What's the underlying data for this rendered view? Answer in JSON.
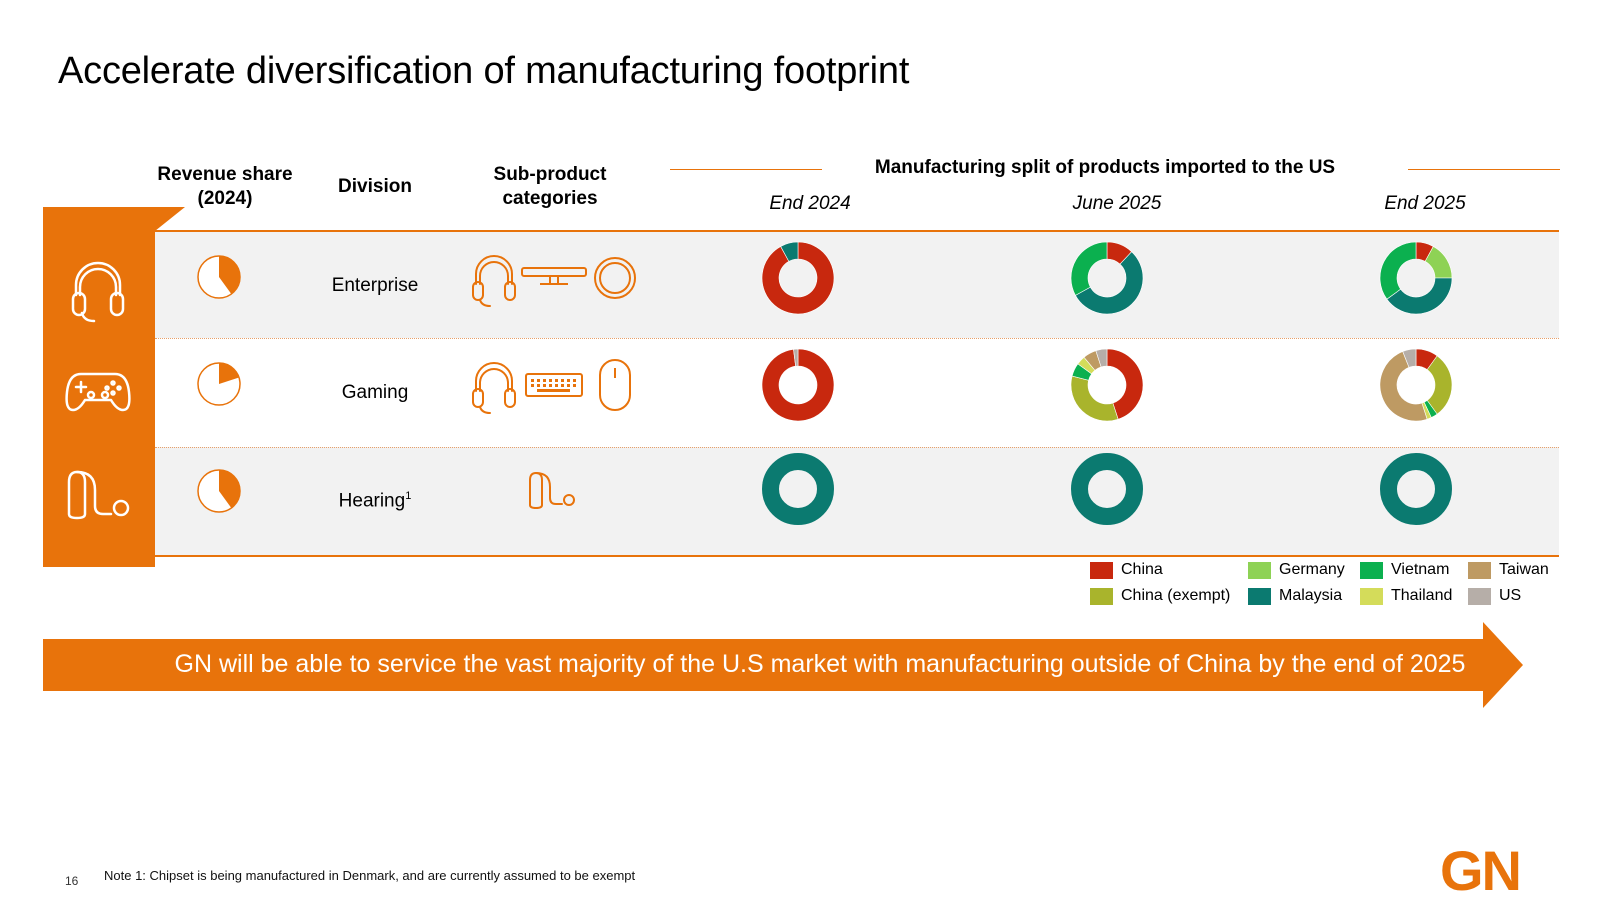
{
  "title": "Accelerate diversification of manufacturing footprint",
  "headers": {
    "revenue_share": "Revenue share (2024)",
    "division": "Division",
    "sub_product": "Sub-product categories",
    "manufacturing": "Manufacturing split of products imported to the US"
  },
  "periods": [
    "End 2024",
    "June 2025",
    "End 2025"
  ],
  "colors": {
    "brand": "#E8730B",
    "China": "#C8280E",
    "China (exempt)": "#A9B42C",
    "Germany": "#8ED255",
    "Malaysia": "#0B7A70",
    "Vietnam": "#0BB04F",
    "Thailand": "#D4DC5A",
    "Taiwan": "#BE9A63",
    "US": "#B6AEA8"
  },
  "divisions": [
    {
      "name": "Enterprise",
      "footnote": "",
      "revenue_share": 0.4,
      "division_icon": "headset-icon",
      "sub_icons": [
        "headset-icon",
        "video-bar-icon",
        "speakerphone-icon"
      ]
    },
    {
      "name": "Gaming",
      "footnote": "",
      "revenue_share": 0.2,
      "division_icon": "gamepad-icon",
      "sub_icons": [
        "headset-icon",
        "keyboard-icon",
        "mouse-icon"
      ]
    },
    {
      "name": "Hearing",
      "footnote": "1",
      "revenue_share": 0.4,
      "division_icon": "hearing-aid-icon",
      "sub_icons": [
        "hearing-aid-icon"
      ]
    }
  ],
  "chart_data": [
    {
      "type": "pie",
      "title": "Enterprise End 2024",
      "slices": [
        {
          "label": "China",
          "value": 92
        },
        {
          "label": "Malaysia",
          "value": 8
        }
      ]
    },
    {
      "type": "pie",
      "title": "Enterprise June 2025",
      "slices": [
        {
          "label": "China",
          "value": 12
        },
        {
          "label": "Malaysia",
          "value": 55
        },
        {
          "label": "Vietnam",
          "value": 33
        }
      ]
    },
    {
      "type": "pie",
      "title": "Enterprise End 2025",
      "slices": [
        {
          "label": "China",
          "value": 8
        },
        {
          "label": "Germany",
          "value": 17
        },
        {
          "label": "Malaysia",
          "value": 40
        },
        {
          "label": "Vietnam",
          "value": 35
        }
      ]
    },
    {
      "type": "pie",
      "title": "Gaming End 2024",
      "slices": [
        {
          "label": "China",
          "value": 98
        },
        {
          "label": "US",
          "value": 2
        }
      ]
    },
    {
      "type": "pie",
      "title": "Gaming June 2025",
      "slices": [
        {
          "label": "China",
          "value": 45
        },
        {
          "label": "China (exempt)",
          "value": 34
        },
        {
          "label": "Vietnam",
          "value": 6
        },
        {
          "label": "Thailand",
          "value": 4
        },
        {
          "label": "Taiwan",
          "value": 6
        },
        {
          "label": "US",
          "value": 5
        }
      ]
    },
    {
      "type": "pie",
      "title": "Gaming End 2025",
      "slices": [
        {
          "label": "China",
          "value": 10
        },
        {
          "label": "China (exempt)",
          "value": 30
        },
        {
          "label": "Vietnam",
          "value": 3
        },
        {
          "label": "Thailand",
          "value": 2
        },
        {
          "label": "Taiwan",
          "value": 49
        },
        {
          "label": "US",
          "value": 6
        }
      ]
    },
    {
      "type": "pie",
      "title": "Hearing End 2024",
      "slices": [
        {
          "label": "Malaysia",
          "value": 100
        }
      ]
    },
    {
      "type": "pie",
      "title": "Hearing June 2025",
      "slices": [
        {
          "label": "Malaysia",
          "value": 100
        }
      ]
    },
    {
      "type": "pie",
      "title": "Hearing End 2025",
      "slices": [
        {
          "label": "Malaysia",
          "value": 100
        }
      ]
    }
  ],
  "legend": [
    "China",
    "Germany",
    "Vietnam",
    "Taiwan",
    "China (exempt)",
    "Malaysia",
    "Thailand",
    "US"
  ],
  "banner": "GN will be able to service the vast majority of the U.S market with manufacturing outside of China by the end of 2025",
  "page_number": "16",
  "note": "Note 1: Chipset is being manufactured in Denmark, and are currently assumed to be exempt",
  "logo": "GN"
}
